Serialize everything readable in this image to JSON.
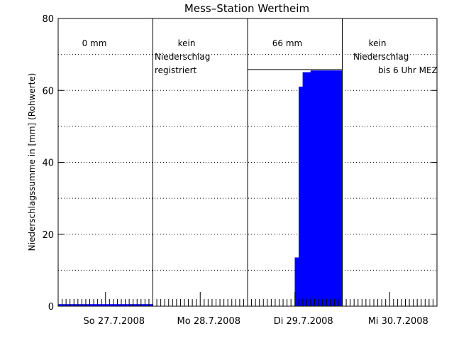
{
  "chart_data": {
    "type": "bar",
    "title": "Mess–Station Wertheim",
    "ylabel": "Niederschlagssumme in [mm] (Rohwerte)",
    "xlabel": "",
    "ylim": [
      0,
      80
    ],
    "yticks": [
      0,
      20,
      40,
      60,
      80
    ],
    "xlim": [
      0,
      96
    ],
    "grid": "horizontal-dotted",
    "day_labels": [
      "So 27.7.2008",
      "Mo 28.7.2008",
      "Di 29.7.2008",
      "Mi 30.7.2008"
    ],
    "day_annotations": [
      [
        "0 mm"
      ],
      [
        "kein",
        "Niederschlag",
        "registriert"
      ],
      [
        "66 mm"
      ],
      [
        "kein",
        "Niederschlag",
        "bis 6 Uhr MEZ"
      ]
    ],
    "day_totals": [
      0,
      null,
      66,
      null
    ],
    "series": [
      {
        "color": "#0000ff",
        "x": [
          0,
          24,
          48,
          60,
          61,
          62,
          63,
          64,
          65,
          66,
          67,
          68,
          69,
          70,
          71,
          72
        ],
        "values": [
          0.5,
          0,
          0,
          13.5,
          61,
          65,
          65,
          65.5,
          65.5,
          65.5,
          65.5,
          65.5,
          65.5,
          65.5,
          65.5,
          0
        ]
      }
    ]
  }
}
